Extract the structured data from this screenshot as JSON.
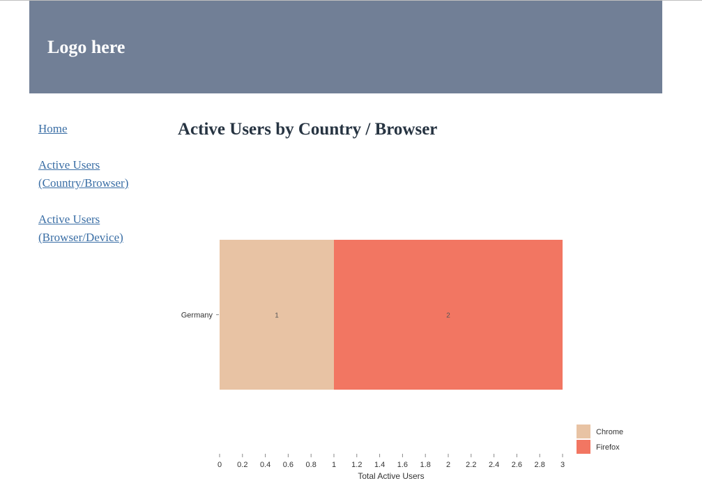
{
  "header": {
    "logo_text": "Logo here",
    "background": "#717f96"
  },
  "sidebar": {
    "links": [
      {
        "label": "Home"
      },
      {
        "label": "Active Users (Country/Browser)"
      },
      {
        "label": "Active Users (Browser/Device)"
      }
    ],
    "link_color": "#3a6ea5"
  },
  "main": {
    "title": "Active Users by Country / Browser"
  },
  "chart_data": {
    "type": "bar",
    "orientation": "horizontal",
    "stacked": true,
    "categories": [
      "Germany"
    ],
    "series": [
      {
        "name": "Chrome",
        "values": [
          1
        ],
        "color": "#e8c3a4"
      },
      {
        "name": "Firefox",
        "values": [
          2
        ],
        "color": "#f27662"
      }
    ],
    "xlabel": "Total Active Users",
    "ylabel": "",
    "xlim": [
      0,
      3
    ],
    "xticks": [
      "0",
      "0.2",
      "0.4",
      "0.6",
      "0.8",
      "1",
      "1.2",
      "1.4",
      "1.6",
      "1.8",
      "2",
      "2.2",
      "2.4",
      "2.6",
      "2.8",
      "3"
    ],
    "data_labels": [
      "1",
      "2"
    ],
    "grid": false,
    "legend_position": "bottom-right"
  }
}
